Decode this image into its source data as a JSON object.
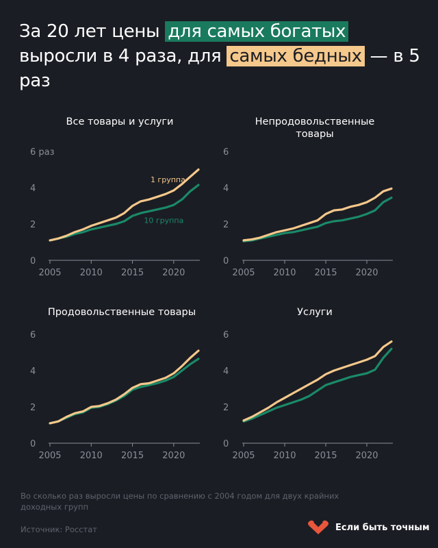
{
  "headline": {
    "part1": "За 20 лет цены ",
    "highlight_rich": "для самых богатых",
    "part2": " выросли в 4 раза, для ",
    "highlight_poor": "самых бедных",
    "part3": " — в 5 раз"
  },
  "colors": {
    "group1": "#f5c88b",
    "group10": "#1a8a68",
    "background": "#1b1d24"
  },
  "chart_data": [
    {
      "type": "line",
      "title": "Все товары и услуги",
      "y_ticks": [
        "0",
        "2",
        "4",
        "6 раз"
      ],
      "x_ticks": [
        "2005",
        "2010",
        "2015",
        "2020"
      ],
      "xlim": [
        2004.5,
        2023.5
      ],
      "ylim": [
        0,
        6
      ],
      "x": [
        2005,
        2006,
        2007,
        2008,
        2009,
        2010,
        2011,
        2012,
        2013,
        2014,
        2015,
        2016,
        2017,
        2018,
        2019,
        2020,
        2021,
        2022,
        2023
      ],
      "series": [
        {
          "name": "1 группа",
          "values": [
            1.1,
            1.2,
            1.35,
            1.55,
            1.7,
            1.9,
            2.05,
            2.2,
            2.35,
            2.6,
            3.0,
            3.25,
            3.35,
            3.5,
            3.65,
            3.85,
            4.2,
            4.6,
            5.0
          ]
        },
        {
          "name": "10 группа",
          "values": [
            1.1,
            1.2,
            1.3,
            1.45,
            1.55,
            1.7,
            1.8,
            1.9,
            2.0,
            2.15,
            2.45,
            2.6,
            2.7,
            2.8,
            2.9,
            3.05,
            3.35,
            3.8,
            4.15
          ]
        }
      ]
    },
    {
      "type": "line",
      "title": "Непродовольственные товары",
      "y_ticks": [
        "0",
        "2",
        "4",
        "6"
      ],
      "x_ticks": [
        "2005",
        "2010",
        "2015",
        "2020"
      ],
      "xlim": [
        2004.5,
        2023.5
      ],
      "ylim": [
        0,
        6
      ],
      "x": [
        2005,
        2006,
        2007,
        2008,
        2009,
        2010,
        2011,
        2012,
        2013,
        2014,
        2015,
        2016,
        2017,
        2018,
        2019,
        2020,
        2021,
        2022,
        2023
      ],
      "series": [
        {
          "values": [
            1.1,
            1.15,
            1.25,
            1.4,
            1.55,
            1.65,
            1.75,
            1.9,
            2.05,
            2.2,
            2.55,
            2.75,
            2.8,
            2.95,
            3.05,
            3.2,
            3.45,
            3.8,
            3.95
          ]
        },
        {
          "values": [
            1.05,
            1.1,
            1.2,
            1.3,
            1.4,
            1.5,
            1.55,
            1.65,
            1.75,
            1.85,
            2.05,
            2.15,
            2.2,
            2.3,
            2.4,
            2.55,
            2.75,
            3.2,
            3.45
          ]
        }
      ]
    },
    {
      "type": "line",
      "title": "Продовольственные товары",
      "y_ticks": [
        "0",
        "2",
        "4",
        "6"
      ],
      "x_ticks": [
        "2005",
        "2010",
        "2015",
        "2020"
      ],
      "xlim": [
        2004.5,
        2023.5
      ],
      "ylim": [
        0,
        6
      ],
      "x": [
        2005,
        2006,
        2007,
        2008,
        2009,
        2010,
        2011,
        2012,
        2013,
        2014,
        2015,
        2016,
        2017,
        2018,
        2019,
        2020,
        2021,
        2022,
        2023
      ],
      "series": [
        {
          "values": [
            1.1,
            1.2,
            1.45,
            1.65,
            1.75,
            2.0,
            2.05,
            2.2,
            2.4,
            2.7,
            3.05,
            3.25,
            3.3,
            3.45,
            3.6,
            3.85,
            4.25,
            4.7,
            5.1
          ]
        },
        {
          "values": [
            1.1,
            1.2,
            1.4,
            1.6,
            1.7,
            1.95,
            2.0,
            2.15,
            2.35,
            2.6,
            2.95,
            3.1,
            3.2,
            3.3,
            3.45,
            3.65,
            4.0,
            4.35,
            4.65
          ]
        }
      ]
    },
    {
      "type": "line",
      "title": "Услуги",
      "y_ticks": [
        "0",
        "2",
        "4",
        "6"
      ],
      "x_ticks": [
        "2005",
        "2010",
        "2015",
        "2020"
      ],
      "xlim": [
        2004.5,
        2023.5
      ],
      "ylim": [
        0,
        6
      ],
      "x": [
        2005,
        2006,
        2007,
        2008,
        2009,
        2010,
        2011,
        2012,
        2013,
        2014,
        2015,
        2016,
        2017,
        2018,
        2019,
        2020,
        2021,
        2022,
        2023
      ],
      "series": [
        {
          "values": [
            1.25,
            1.45,
            1.7,
            1.95,
            2.25,
            2.5,
            2.75,
            3.0,
            3.25,
            3.5,
            3.8,
            4.0,
            4.15,
            4.3,
            4.45,
            4.6,
            4.8,
            5.3,
            5.6
          ]
        },
        {
          "values": [
            1.2,
            1.35,
            1.55,
            1.75,
            1.95,
            2.1,
            2.25,
            2.4,
            2.6,
            2.9,
            3.2,
            3.35,
            3.5,
            3.65,
            3.75,
            3.85,
            4.05,
            4.7,
            5.2
          ]
        }
      ]
    }
  ],
  "footnote": "Во сколько раз выросли цены по сравнению с 2004 годом для двух крайних доходных групп",
  "source": "Источник: Росстат",
  "brand": {
    "name": "Если быть точным",
    "icon": "heart-icon"
  }
}
